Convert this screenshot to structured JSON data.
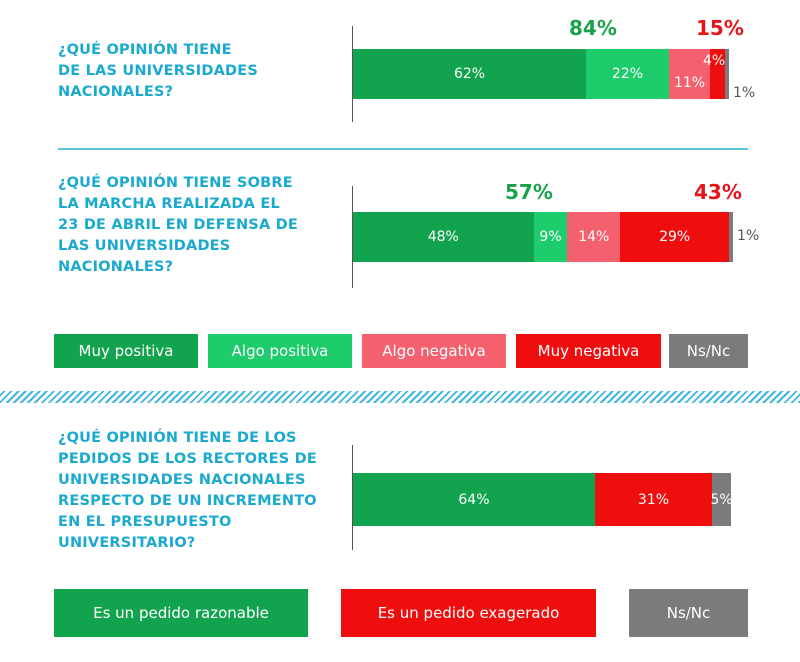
{
  "colors": {
    "muy_positiva": "#12a34e",
    "algo_positiva": "#1dcc6a",
    "algo_negativa": "#f4606e",
    "muy_negativa": "#ee0e0e",
    "nsnc": "#7b7b7b",
    "total_positive_text": "#1aa24a",
    "total_negative_text": "#e4161c",
    "question_text": "#1aa9cf"
  },
  "questions": [
    {
      "text": "¿QUÉ OPINIÓN TIENE\nDE LAS UNIVERSIDADES\nNACIONALES?"
    },
    {
      "text": "¿QUÉ OPINIÓN TIENE SOBRE\nLA MARCHA REALIZADA EL\n23 DE ABRIL EN DEFENSA DE\nLAS UNIVERSIDADES\nNACIONALES?"
    },
    {
      "text": "¿QUÉ OPINIÓN TIENE DE LOS\nPEDIDOS DE LOS RECTORES DE\nUNIVERSIDADES NACIONALES\nRESPECTO DE UN INCREMENTO\nEN EL PRESUPUESTO\nUNIVERSITARIO?"
    }
  ],
  "legend1": [
    "Muy positiva",
    "Algo positiva",
    "Algo negativa",
    "Muy negativa",
    "Ns/Nc"
  ],
  "legend2": [
    "Es un pedido razonable",
    "Es un pedido exagerado",
    "Ns/Nc"
  ],
  "chart_data": [
    {
      "type": "bar",
      "orientation": "horizontal-stacked-100",
      "title": "¿QUÉ OPINIÓN TIENE DE LAS UNIVERSIDADES NACIONALES?",
      "categories": [
        "Muy positiva",
        "Algo positiva",
        "Algo negativa",
        "Muy negativa",
        "Ns/Nc"
      ],
      "values": [
        62,
        22,
        11,
        4,
        1
      ],
      "labels": [
        "62%",
        "22%",
        "11%",
        "4%",
        "1%"
      ],
      "totals": {
        "positive": "84%",
        "negative": "15%"
      }
    },
    {
      "type": "bar",
      "orientation": "horizontal-stacked-100",
      "title": "¿QUÉ OPINIÓN TIENE SOBRE LA MARCHA REALIZADA EL 23 DE ABRIL EN DEFENSA DE LAS UNIVERSIDADES NACIONALES?",
      "categories": [
        "Muy positiva",
        "Algo positiva",
        "Algo negativa",
        "Muy negativa",
        "Ns/Nc"
      ],
      "values": [
        48,
        9,
        14,
        29,
        1
      ],
      "labels": [
        "48%",
        "9%",
        "14%",
        "29%",
        "1%"
      ],
      "totals": {
        "positive": "57%",
        "negative": "43%"
      }
    },
    {
      "type": "bar",
      "orientation": "horizontal-stacked-100",
      "title": "¿QUÉ OPINIÓN TIENE DE LOS PEDIDOS DE LOS RECTORES DE UNIVERSIDADES NACIONALES RESPECTO DE UN INCREMENTO EN EL PRESUPUESTO UNIVERSITARIO?",
      "categories": [
        "Es un pedido razonable",
        "Es un pedido exagerado",
        "Ns/Nc"
      ],
      "values": [
        64,
        31,
        5
      ],
      "labels": [
        "64%",
        "31%",
        "5%"
      ]
    }
  ]
}
